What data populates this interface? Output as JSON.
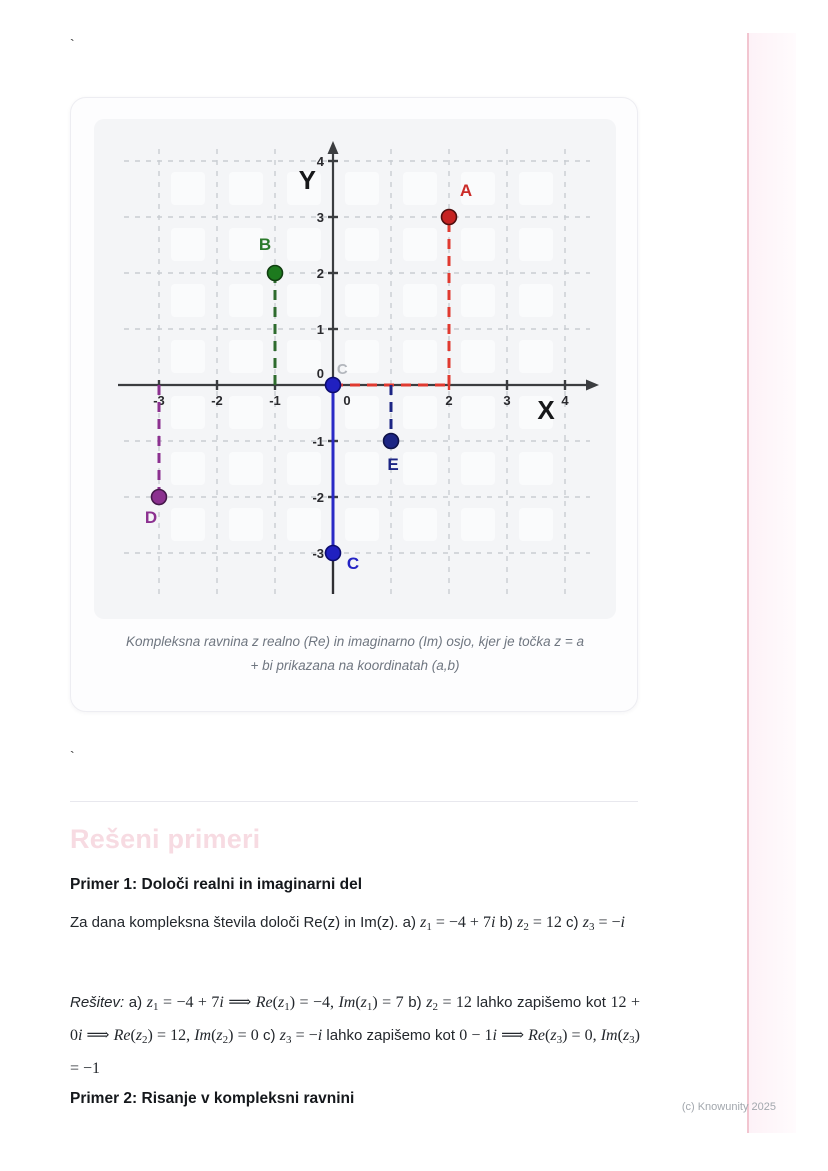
{
  "page": {
    "stray_mark_top": "`",
    "stray_mark_mid": "`",
    "watermark": "(c) Knowunity 2025",
    "accent_pink": "#f2c5d0"
  },
  "figure": {
    "caption": "Kompleksna ravnina z realno (Re) in imaginarno (Im) osjo, kjer je točka z = a\n+ bi prikazana na koordinatah (a,b)",
    "chart_data": {
      "type": "scatter",
      "title": "Kompleksna ravnina",
      "xlabel": "X",
      "ylabel": "Y",
      "xlim": [
        -4.1,
        4.9
      ],
      "ylim": [
        -4.2,
        4.75
      ],
      "grid": "dashed",
      "grid_color": "#c9cdd2",
      "axis_color": "#3b3d40",
      "grid_x": [
        -3,
        -2,
        -1,
        0,
        1,
        2,
        3,
        4
      ],
      "grid_y": [
        -3,
        -2,
        -1,
        0,
        1,
        2,
        3,
        4
      ],
      "x_ticks": [
        {
          "v": -3,
          "t": "-3"
        },
        {
          "v": -2,
          "t": "-2"
        },
        {
          "v": -1,
          "t": "-1"
        },
        {
          "v": 0,
          "t": "0",
          "dx": 14,
          "no_mark": true
        },
        {
          "v": 2,
          "t": "2",
          "mark_color": "#e03a30"
        },
        {
          "v": 3,
          "t": "3"
        },
        {
          "v": 4,
          "t": "4"
        }
      ],
      "y_ticks": [
        {
          "v": 4,
          "t": "4"
        },
        {
          "v": 3,
          "t": "3"
        },
        {
          "v": 2,
          "t": "2"
        },
        {
          "v": 1,
          "t": "1"
        },
        {
          "v": 0,
          "t": "0",
          "dy": -12,
          "no_mark": true
        },
        {
          "v": -1,
          "t": "-1"
        },
        {
          "v": -2,
          "t": "-2"
        },
        {
          "v": -3,
          "t": "-3"
        }
      ],
      "origin_point": {
        "x": 0,
        "y": 0,
        "fill": "#2020c0",
        "stroke": "#0c0c70"
      },
      "ghost_label": {
        "text": "C",
        "x": 0.16,
        "y": 0.2,
        "color": "#b3b7bd"
      },
      "neg_imag_axis": {
        "from": 0,
        "to": -3,
        "color": "#2a2ac6",
        "width": 3
      },
      "points": [
        {
          "label": "A",
          "x": 2,
          "y": 3,
          "fill": "#c62322",
          "stroke": "#4e0e0e",
          "label_color": "#cb2b28",
          "label_offset": [
            17,
            -21
          ],
          "guide_color": "#e03a30",
          "guides": [
            {
              "x1": 2,
              "y1": 0,
              "x2": 2,
              "y2": 3,
              "dash": true
            },
            {
              "x1": 0,
              "y1": 0,
              "x2": 2,
              "y2": 0,
              "dash": true
            }
          ]
        },
        {
          "label": "B",
          "x": -1,
          "y": 2,
          "fill": "#1d7a1e",
          "stroke": "#103d10",
          "label_color": "#2c7a2b",
          "label_offset": [
            -10,
            -23
          ],
          "guide_color": "#2e6b2e",
          "guides": [
            {
              "x1": -1,
              "y1": 0,
              "x2": -1,
              "y2": 2,
              "dash": true
            }
          ]
        },
        {
          "label": "C",
          "x": 0,
          "y": -3,
          "fill": "#2020c0",
          "stroke": "#0c0c70",
          "label_color": "#2424c4",
          "label_offset": [
            20,
            16
          ],
          "guide_color": "#2a2ac6",
          "guides": [
            {
              "x1": 0,
              "y1": 0,
              "x2": 0,
              "y2": -3,
              "dash": false
            }
          ]
        },
        {
          "label": "D",
          "x": -3,
          "y": -2,
          "fill": "#8c3190",
          "stroke": "#45184a",
          "label_color": "#8c3190",
          "label_offset": [
            -8,
            26
          ],
          "guide_color": "#8c3190",
          "guides": [
            {
              "x1": -3,
              "y1": 0,
              "x2": -3,
              "y2": -2,
              "dash": true
            }
          ]
        },
        {
          "label": "E",
          "x": 1,
          "y": -1,
          "fill": "#1c2584",
          "stroke": "#0e1248",
          "label_color": "#1c2584",
          "label_offset": [
            2,
            29
          ],
          "guide_color": "#1c2584",
          "guides": [
            {
              "x1": 1,
              "y1": 0,
              "x2": 1,
              "y2": -1,
              "dash": true
            }
          ]
        }
      ]
    }
  },
  "content": {
    "section_title": "Rešeni primeri",
    "example1_title": "Primer 1: Določi realni in imaginarni del",
    "example1_problem_segments": [
      {
        "k": "text",
        "s": "Za dana kompleksna števila določi Re(z) in Im(z). a) "
      },
      {
        "k": "math",
        "s": "z_1 = −4 + 7i"
      },
      {
        "k": "text",
        "s": " b) "
      },
      {
        "k": "math",
        "s": "z_2 = 12"
      },
      {
        "k": "text",
        "s": " c) "
      },
      {
        "k": "math",
        "s": "z_3 = −i"
      }
    ],
    "example1_solution_segments": [
      {
        "k": "italic",
        "s": "Rešitev:"
      },
      {
        "k": "text",
        "s": " a) "
      },
      {
        "k": "math",
        "s": "z_1 = −4 + 7i ⟹ Re(z_1) = −4, Im(z_1) = 7"
      },
      {
        "k": "text",
        "s": " b) "
      },
      {
        "k": "math",
        "s": "z_2 = 12"
      },
      {
        "k": "text",
        "s": " lahko zapišemo kot "
      },
      {
        "k": "math",
        "s": "12 + 0i ⟹ Re(z_2) = 12, Im(z_2) = 0"
      },
      {
        "k": "text",
        "s": " c) "
      },
      {
        "k": "math",
        "s": "z_3 = −i"
      },
      {
        "k": "text",
        "s": " lahko zapišemo kot "
      },
      {
        "k": "math",
        "s": "0 − 1i ⟹ Re(z_3) = 0, Im(z_3) = −1"
      }
    ],
    "example2_title": "Primer 2: Risanje v kompleksni ravnini"
  }
}
